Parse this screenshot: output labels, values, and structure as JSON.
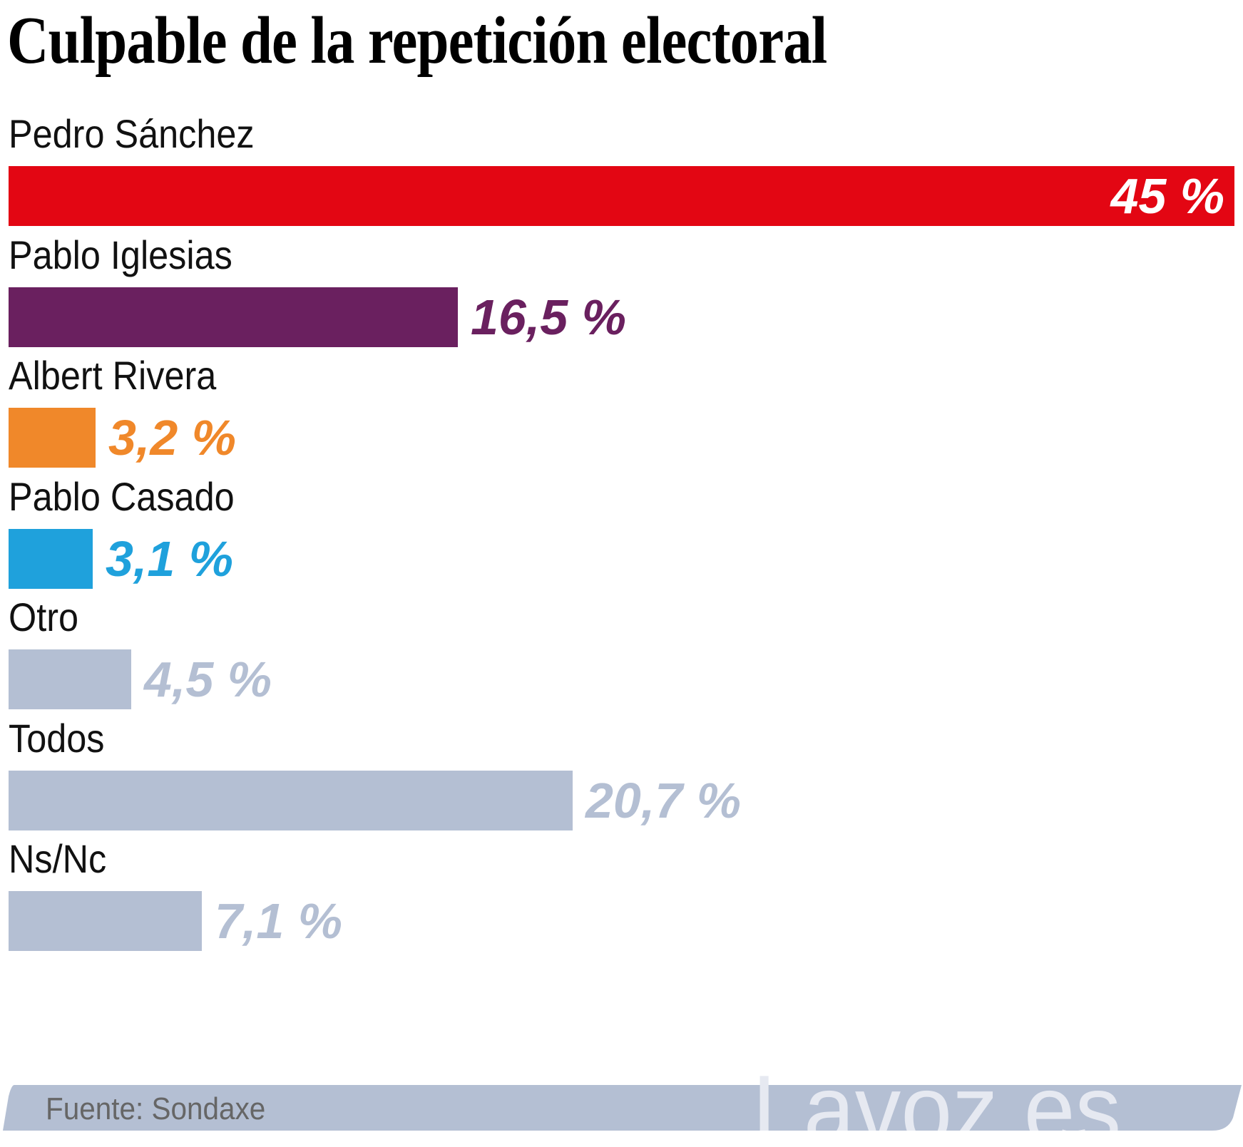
{
  "chart_data": {
    "type": "bar",
    "orientation": "horizontal",
    "title": "Culpable de la repetición electoral",
    "xlabel": "",
    "ylabel": "",
    "xlim": [
      0,
      45
    ],
    "grid": false,
    "legend": "none",
    "unit": "%",
    "categories": [
      "Pedro Sánchez",
      "Pablo Iglesias",
      "Albert Rivera",
      "Pablo Casado",
      "Otro",
      "Todos",
      "Ns/Nc"
    ],
    "values": [
      45,
      16.5,
      3.2,
      3.1,
      4.5,
      20.7,
      7.1
    ],
    "value_labels": [
      "45 %",
      "16,5 %",
      "3,2 %",
      "3,1 %",
      "4,5 %",
      "20,7 %",
      "7,1 %"
    ],
    "colors": [
      "#e30613",
      "#6a205f",
      "#f0882a",
      "#1fa1dc",
      "#b4bfd3",
      "#b4bfd3",
      "#b4bfd3"
    ]
  },
  "footer": {
    "source": "Fuente: Sondaxe",
    "brand": "Lavoz.es",
    "bar_color": "#b4bfd3"
  }
}
